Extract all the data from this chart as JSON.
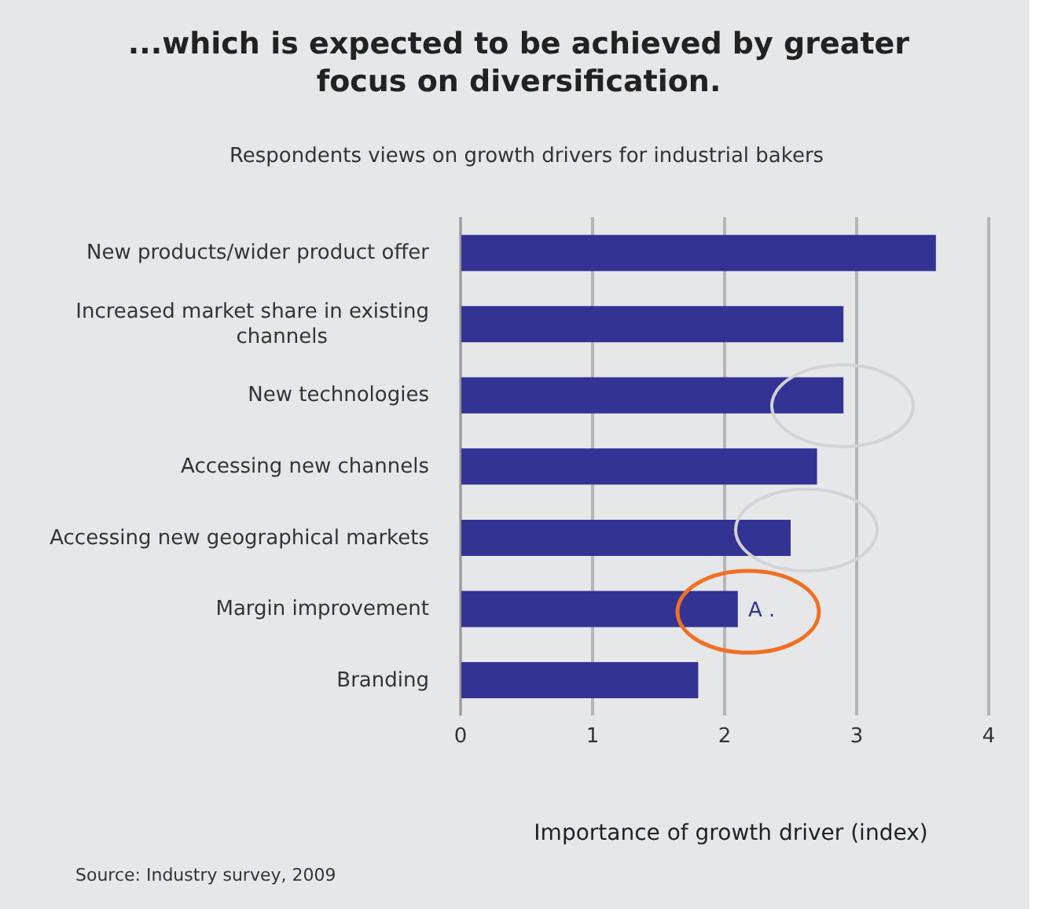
{
  "chart_data": {
    "type": "bar",
    "orientation": "horizontal",
    "title": "...which is expected to be achieved by greater focus on diversification.",
    "subtitle": "Respondents views on growth drivers for industrial bakers",
    "xlabel": "Importance of growth driver (index)",
    "categories": [
      "New products/wider product offer",
      "Increased market share in existing channels",
      "New technologies",
      "Accessing new channels",
      "Accessing new geographical markets",
      "Margin improvement",
      "Branding"
    ],
    "values": [
      3.6,
      2.9,
      2.9,
      2.7,
      2.5,
      2.1,
      1.8
    ],
    "color": "#333394",
    "xlim": [
      0,
      4
    ],
    "xticks": [
      0,
      1,
      2,
      3,
      4
    ],
    "grid": "x",
    "legend": false,
    "annotations": [
      "A .",
      "Source: Industry survey, 2009"
    ]
  }
}
